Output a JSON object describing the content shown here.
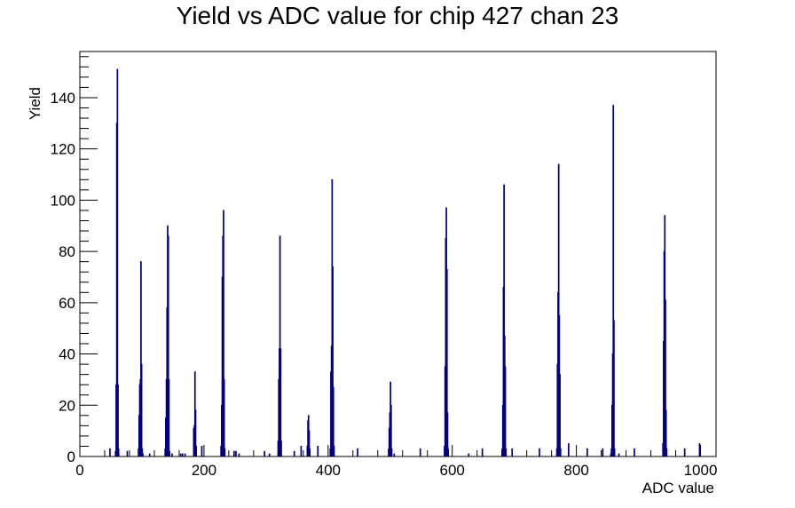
{
  "chart_data": {
    "type": "bar",
    "title": "Yield vs ADC value for chip 427 chan 23",
    "xlabel": "ADC value",
    "ylabel": "Yield",
    "xlim": [
      0,
      1025
    ],
    "ylim": [
      0,
      158
    ],
    "x_ticks": [
      "0",
      "200",
      "400",
      "600",
      "800",
      "1000"
    ],
    "y_ticks": [
      "0",
      "20",
      "40",
      "60",
      "80",
      "100",
      "120",
      "140"
    ],
    "x_tick_values": [
      0,
      200,
      400,
      600,
      800,
      1000
    ],
    "y_tick_values": [
      0,
      20,
      40,
      60,
      80,
      100,
      120,
      140
    ],
    "grid": false,
    "legend": "none",
    "series": [
      {
        "color": "#000080",
        "bins": [
          [
            48,
            3
          ],
          [
            57,
            2
          ],
          [
            58,
            28
          ],
          [
            59,
            130
          ],
          [
            60,
            151
          ],
          [
            61,
            28
          ],
          [
            62,
            3
          ],
          [
            76,
            2
          ],
          [
            94,
            3
          ],
          [
            95,
            16
          ],
          [
            96,
            28
          ],
          [
            97,
            30
          ],
          [
            98,
            76
          ],
          [
            99,
            36
          ],
          [
            100,
            3
          ],
          [
            101,
            1
          ],
          [
            112,
            1
          ],
          [
            137,
            3
          ],
          [
            138,
            15
          ],
          [
            139,
            30
          ],
          [
            140,
            58
          ],
          [
            141,
            90
          ],
          [
            142,
            86
          ],
          [
            143,
            30
          ],
          [
            144,
            2
          ],
          [
            148,
            1
          ],
          [
            162,
            1
          ],
          [
            165,
            1
          ],
          [
            169,
            1
          ],
          [
            183,
            11
          ],
          [
            184,
            12
          ],
          [
            185,
            33
          ],
          [
            186,
            18
          ],
          [
            187,
            4
          ],
          [
            196,
            4
          ],
          [
            227,
            4
          ],
          [
            228,
            20
          ],
          [
            229,
            70
          ],
          [
            230,
            86
          ],
          [
            231,
            96
          ],
          [
            232,
            30
          ],
          [
            233,
            3
          ],
          [
            248,
            2
          ],
          [
            251,
            2
          ],
          [
            256,
            1
          ],
          [
            297,
            2
          ],
          [
            305,
            1
          ],
          [
            319,
            6
          ],
          [
            320,
            30
          ],
          [
            321,
            42
          ],
          [
            322,
            86
          ],
          [
            323,
            42
          ],
          [
            324,
            6
          ],
          [
            345,
            2
          ],
          [
            356,
            4
          ],
          [
            366,
            4
          ],
          [
            367,
            14
          ],
          [
            368,
            16
          ],
          [
            369,
            10
          ],
          [
            370,
            3
          ],
          [
            383,
            4
          ],
          [
            403,
            3
          ],
          [
            404,
            33
          ],
          [
            405,
            43
          ],
          [
            406,
            108
          ],
          [
            407,
            74
          ],
          [
            408,
            27
          ],
          [
            409,
            4
          ],
          [
            447,
            3
          ],
          [
            497,
            3
          ],
          [
            498,
            11
          ],
          [
            499,
            17
          ],
          [
            500,
            29
          ],
          [
            501,
            20
          ],
          [
            502,
            3
          ],
          [
            506,
            1
          ],
          [
            548,
            3
          ],
          [
            587,
            4
          ],
          [
            588,
            35
          ],
          [
            589,
            85
          ],
          [
            590,
            97
          ],
          [
            591,
            73
          ],
          [
            592,
            17
          ],
          [
            593,
            3
          ],
          [
            626,
            1
          ],
          [
            648,
            3
          ],
          [
            680,
            3
          ],
          [
            681,
            20
          ],
          [
            682,
            66
          ],
          [
            683,
            106
          ],
          [
            684,
            47
          ],
          [
            685,
            35
          ],
          [
            686,
            3
          ],
          [
            696,
            3
          ],
          [
            740,
            3
          ],
          [
            768,
            3
          ],
          [
            769,
            36
          ],
          [
            770,
            64
          ],
          [
            771,
            114
          ],
          [
            772,
            55
          ],
          [
            773,
            32
          ],
          [
            774,
            3
          ],
          [
            787,
            5
          ],
          [
            817,
            3
          ],
          [
            842,
            3
          ],
          [
            855,
            1
          ],
          [
            856,
            3
          ],
          [
            857,
            20
          ],
          [
            858,
            40
          ],
          [
            859,
            137
          ],
          [
            860,
            53
          ],
          [
            861,
            3
          ],
          [
            868,
            1
          ],
          [
            893,
            3
          ],
          [
            939,
            5
          ],
          [
            940,
            45
          ],
          [
            941,
            80
          ],
          [
            942,
            94
          ],
          [
            943,
            61
          ],
          [
            944,
            18
          ],
          [
            945,
            3
          ],
          [
            974,
            3
          ],
          [
            998,
            5
          ]
        ]
      }
    ]
  }
}
